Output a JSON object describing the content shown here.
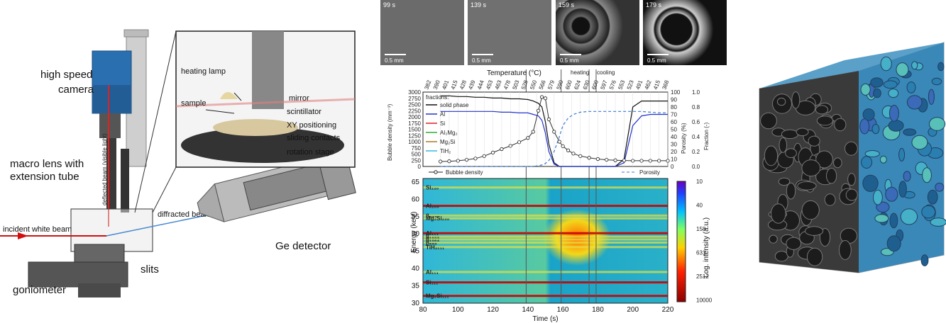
{
  "setup": {
    "high_speed_camera": "high speed\ncamera",
    "macro_lens": "macro lens with\nextension tube",
    "deflected_beam": "deflected beam (visible light)",
    "incident_beam": "incident white beam",
    "diffracted_beam": "diffracted beam",
    "slits": "slits",
    "goniometer": "goniometer",
    "ge_detector": "Ge detector",
    "heating_lamp": "heating lamp",
    "sample": "sample",
    "mirror": "mirror",
    "scintillator": "scintillator",
    "xy_positioning": "XY positioning",
    "sliding_contacts": "sliding contacts",
    "rotation_stage": "rotation stage"
  },
  "micrographs": [
    {
      "time": "99 s",
      "scale": "0.5 mm"
    },
    {
      "time": "139 s",
      "scale": "0.5 mm"
    },
    {
      "time": "159 s",
      "scale": "0.5 mm"
    },
    {
      "time": "179 s",
      "scale": "0.5 mm"
    }
  ],
  "chart_data": [
    {
      "type": "line",
      "top_axis_label": "Temperature (°C)",
      "temp_ticks": [
        "382",
        "390",
        "401",
        "415",
        "428",
        "439",
        "444",
        "453",
        "463",
        "478",
        "503",
        "528",
        "550",
        "566",
        "579",
        "590",
        "600",
        "624",
        "630",
        "600",
        "597",
        "576",
        "553",
        "523",
        "491",
        "462",
        "415",
        "368"
      ],
      "heating_label": "heating",
      "cooling_label": "cooling",
      "y_left_label": "Bubble density (mm⁻³)",
      "y_left_ticks": [
        "0",
        "250",
        "500",
        "750",
        "1000",
        "1250",
        "1500",
        "1750",
        "2000",
        "2250",
        "2500",
        "2750",
        "3000"
      ],
      "y_right1_label": "Porosity (%)",
      "y_right1_ticks": [
        "0",
        "10",
        "20",
        "30",
        "40",
        "50",
        "60",
        "70",
        "80",
        "90",
        "100"
      ],
      "y_right2_label": "Fraction (-)",
      "y_right2_ticks": [
        "0.0",
        "0.2",
        "0.4",
        "0.6",
        "0.8",
        "1.0"
      ],
      "legend_title": "fractions:",
      "legend": [
        {
          "name": "solid phase",
          "color": "#111111"
        },
        {
          "name": "Al",
          "color": "#2233cc"
        },
        {
          "name": "Si",
          "color": "#dd2222"
        },
        {
          "name": "Al₃Mg₂",
          "color": "#33aa33"
        },
        {
          "name": "Mg₂Si",
          "color": "#aa7722"
        },
        {
          "name": "TiH₂",
          "color": "#33bbdd"
        }
      ],
      "bottom_legend": {
        "bubble": "Bubble density",
        "porosity": "Porosity"
      },
      "x": [
        90,
        95,
        100,
        105,
        110,
        115,
        120,
        125,
        130,
        135,
        140,
        143,
        146,
        148,
        150,
        152,
        155,
        158,
        160,
        163,
        166,
        170,
        175,
        180,
        185,
        190,
        195,
        200,
        205,
        210,
        215,
        220
      ],
      "bubble_density": [
        200,
        210,
        230,
        270,
        320,
        420,
        560,
        700,
        830,
        980,
        1150,
        1400,
        2250,
        2800,
        2750,
        1900,
        1400,
        1000,
        820,
        650,
        520,
        420,
        350,
        300,
        270,
        250,
        240,
        230,
        230,
        230,
        230,
        230
      ],
      "porosity": [
        0,
        0,
        0,
        0,
        0,
        0,
        0,
        0,
        0,
        0,
        0,
        0,
        1,
        2,
        4,
        8,
        20,
        40,
        55,
        65,
        70,
        73,
        74,
        74,
        74,
        74,
        74,
        74,
        74,
        73,
        72,
        72
      ],
      "solid_phase": [
        0.95,
        0.95,
        0.94,
        0.94,
        0.93,
        0.93,
        0.92,
        0.92,
        0.91,
        0.91,
        0.9,
        0.88,
        0.85,
        0.8,
        0.6,
        0.3,
        0.05,
        0,
        0,
        0,
        0,
        0,
        0,
        0,
        0,
        0,
        0.1,
        0.8,
        0.88,
        0.88,
        0.88,
        0.88
      ],
      "al": [
        0.74,
        0.74,
        0.74,
        0.74,
        0.74,
        0.74,
        0.74,
        0.73,
        0.73,
        0.72,
        0.72,
        0.7,
        0.68,
        0.62,
        0.45,
        0.2,
        0.03,
        0,
        0,
        0,
        0,
        0,
        0,
        0,
        0,
        0,
        0.05,
        0.55,
        0.68,
        0.7,
        0.7,
        0.7
      ],
      "xlabel": "Time (s)",
      "x_ticks": [
        80,
        100,
        120,
        140,
        160,
        180,
        200,
        220
      ],
      "xlim": [
        80,
        220
      ]
    },
    {
      "type": "heatmap",
      "ylabel": "Energy (keV)",
      "y_ticks": [
        30,
        35,
        40,
        45,
        50,
        55,
        60,
        65
      ],
      "ylim": [
        30,
        66
      ],
      "xlabel": "Time (s)",
      "x_ticks": [
        80,
        100,
        120,
        140,
        160,
        180,
        200,
        220
      ],
      "xlim": [
        80,
        220
      ],
      "colorbar_label": "Log. intensity (a.u.)",
      "colorbar_ticks": [
        "10",
        "40",
        "158",
        "631",
        "2512",
        "10000"
      ],
      "peaks": [
        {
          "label": "Si₂₂₀",
          "e": 63.4
        },
        {
          "label": "Al₂₀₀",
          "e": 58.1
        },
        {
          "label": "β₈₈₆",
          "e": 55.3
        },
        {
          "label": "Mg₂Si₂₂₀",
          "e": 54.5
        },
        {
          "label": "Al₁₁₁",
          "e": 50.2
        },
        {
          "label": "β₁₀₃₃",
          "e": 49.2
        },
        {
          "label": "β₁₀₆₄",
          "e": 48.4
        },
        {
          "label": "β₆₆₀",
          "e": 47.5
        },
        {
          "label": "TiH₂₁₁₁",
          "e": 46.2
        },
        {
          "label": "Al₁₁₁",
          "e": 39.0
        },
        {
          "label": "Si₁₁₁",
          "e": 36.0
        },
        {
          "label": "Mg₂Si₁₁₁",
          "e": 32.1
        }
      ],
      "markers_time": [
        139,
        159,
        175,
        179
      ]
    }
  ]
}
